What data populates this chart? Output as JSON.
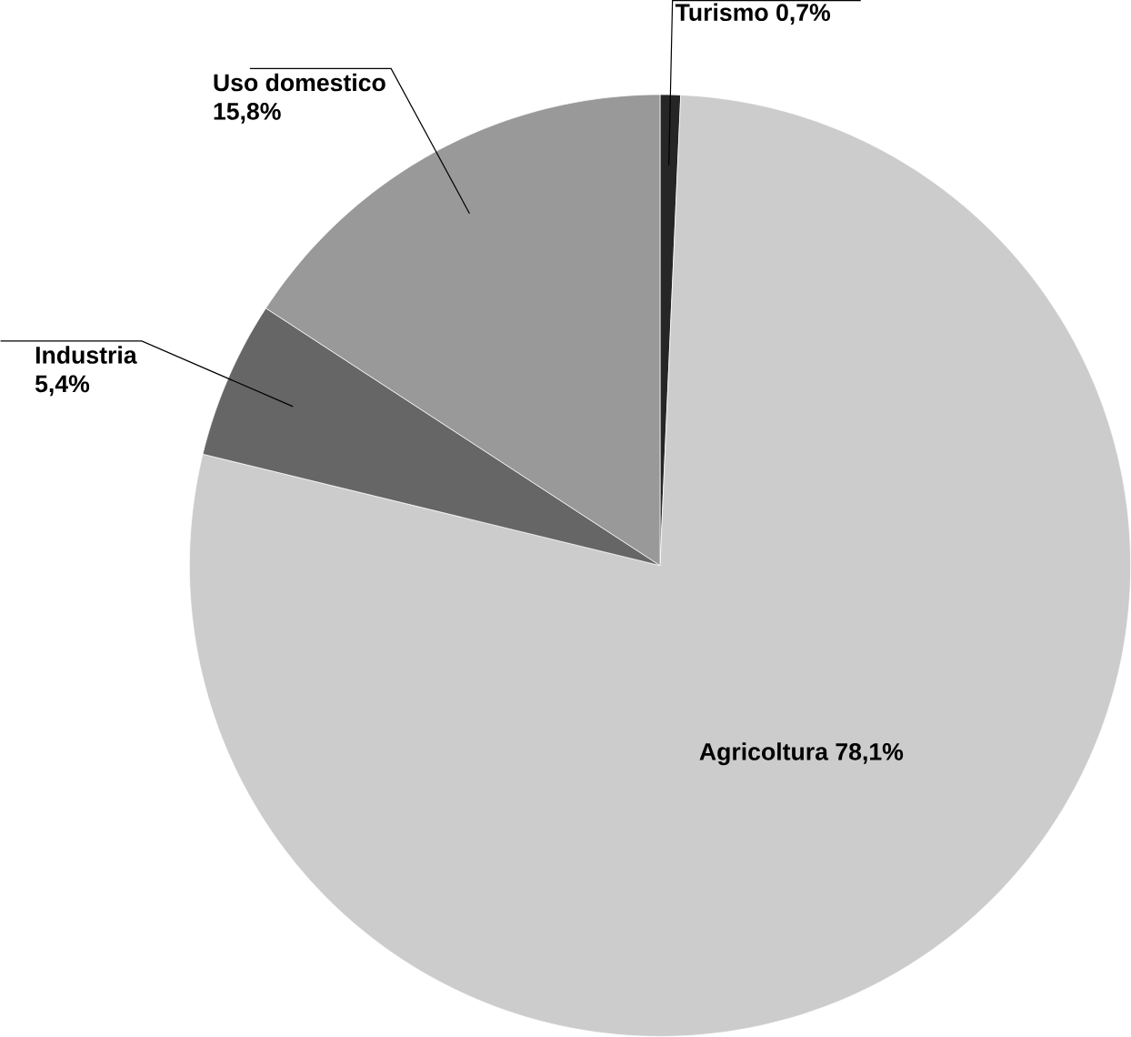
{
  "chart_data": {
    "type": "pie",
    "categories": [
      "Turismo",
      "Agricoltura",
      "Industria",
      "Uso domestico"
    ],
    "values": [
      0.7,
      78.1,
      5.4,
      15.8
    ],
    "colors": [
      "#262626",
      "#cccccc",
      "#666666",
      "#999999"
    ],
    "value_labels": [
      "0,7%",
      "78,1%",
      "5,4%",
      "15,8%"
    ]
  }
}
